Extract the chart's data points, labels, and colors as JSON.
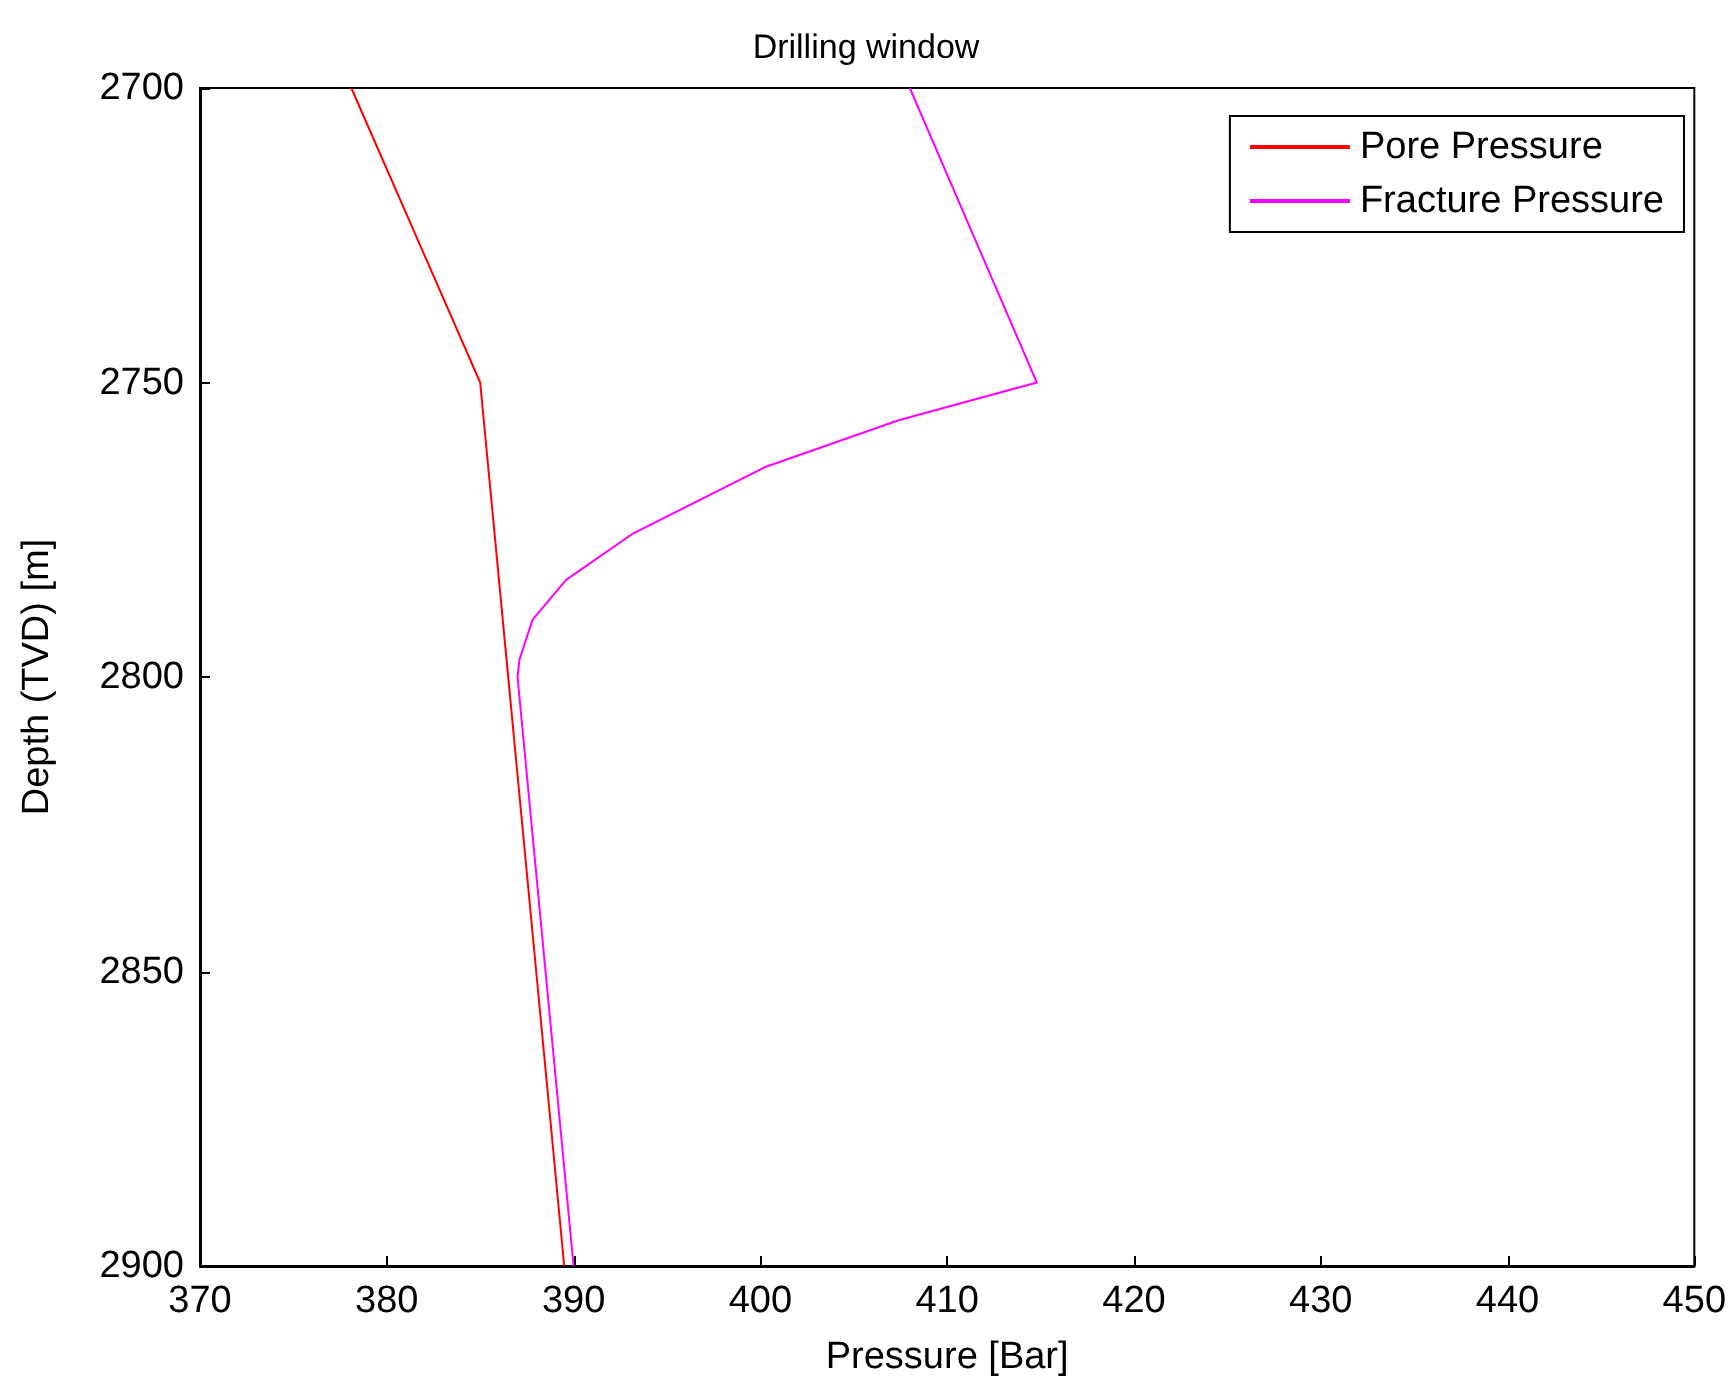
{
  "chart_data": {
    "type": "line",
    "title": "Drilling window",
    "xlabel": "Pressure [Bar]",
    "ylabel": "Depth (TVD) [m]",
    "series": [
      {
        "name": "Pore Pressure",
        "color": "#ff0000",
        "x": [
          378.1,
          385.0,
          389.5
        ],
        "values": [
          2700,
          2750,
          2900
        ]
      },
      {
        "name": "Fracture Pressure",
        "color": "#ff00ff",
        "x": [
          408.0,
          414.8,
          407.4,
          400.3,
          393.2,
          389.6,
          387.8,
          387.1,
          387.0,
          390.0
        ],
        "values": [
          2700,
          2750,
          2756.4,
          2764.3,
          2775.6,
          2783.5,
          2790.3,
          2797.1,
          2800,
          2900
        ]
      }
    ],
    "xlim": [
      370,
      450
    ],
    "xticks": [
      370,
      380,
      390,
      400,
      410,
      420,
      430,
      440,
      450
    ],
    "ylim": [
      2900,
      2700
    ],
    "yticks": [
      2700,
      2750,
      2800,
      2850,
      2900
    ],
    "grid": false,
    "legend": "top right",
    "marker": "none",
    "line_style": "solid"
  }
}
